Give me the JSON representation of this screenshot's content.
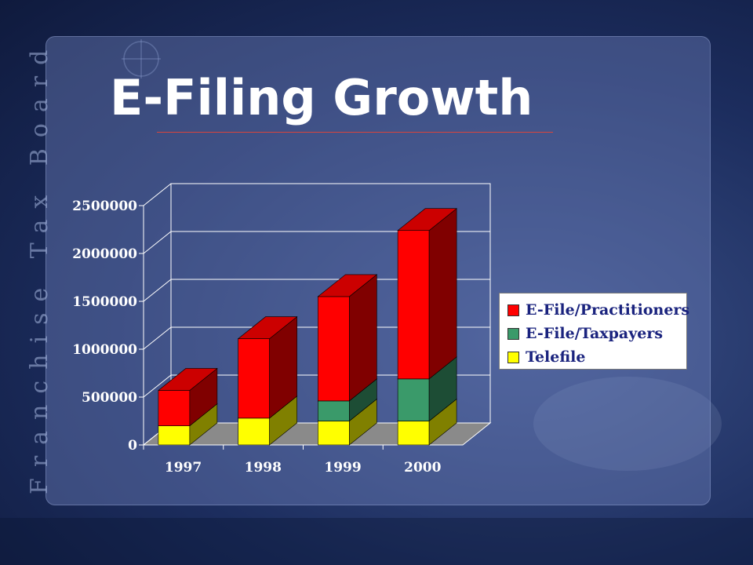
{
  "slide": {
    "title": "E-Filing Growth",
    "side_text": "Franchise Tax Board"
  },
  "colors": {
    "background": "#1c2d5e",
    "title": "#ffffff",
    "title_rule": "#d9443c",
    "axis_labels": "#ffffff",
    "legend_text": "#1a237e"
  },
  "chart_data": {
    "type": "bar",
    "stacked": true,
    "three_d": true,
    "categories": [
      "1997",
      "1998",
      "1999",
      "2000"
    ],
    "series": [
      {
        "name": "Telefile",
        "color": "#ffff00",
        "values": [
          200000,
          280000,
          250000,
          250000
        ]
      },
      {
        "name": "E-File/Taxpayers",
        "color": "#3a9a6a",
        "values": [
          0,
          0,
          210000,
          440000
        ]
      },
      {
        "name": "E-File/Practitioners",
        "color": "#ff0000",
        "values": [
          370000,
          830000,
          1090000,
          1550000
        ]
      }
    ],
    "ylim": [
      0,
      2500000
    ],
    "yticks": [
      "0",
      "500000",
      "1000000",
      "1500000",
      "2000000",
      "2500000"
    ],
    "grid": true,
    "legend_position": "right",
    "legend_order": [
      "E-File/Practitioners",
      "E-File/Taxpayers",
      "Telefile"
    ]
  }
}
